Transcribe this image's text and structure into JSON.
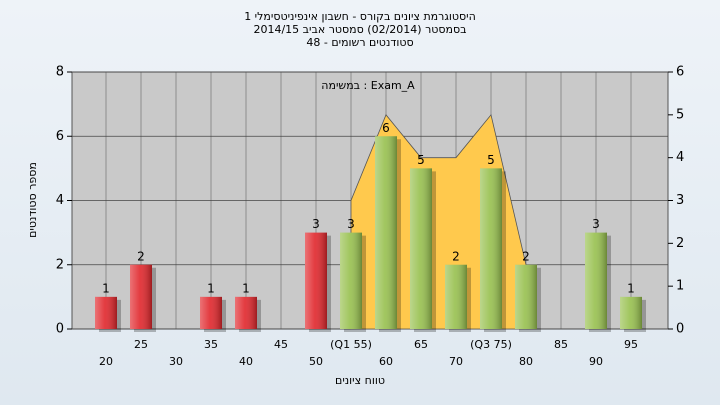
{
  "chart_data": {
    "type": "bar",
    "title": [
      "היסטוגרמת ציונים בקורס - חשבון אינפיניטסימלי 1",
      "בסמסטר (02/2014) סמסטר אביב 2014/15",
      "סטודנטים רשומים - 48"
    ],
    "annotation": "במשימה : Exam_A",
    "xlabel": "טווח ציונים",
    "ylabel": "מספר סטודנטים",
    "categories": [
      "20",
      "25",
      "30",
      "35",
      "40",
      "45",
      "50",
      "(Q1 55)",
      "60",
      "65",
      "70",
      "(Q3 75)",
      "80",
      "85",
      "90",
      "95"
    ],
    "series": [
      {
        "values": [
          1,
          2,
          0,
          1,
          1,
          0,
          3,
          3,
          6,
          5,
          2,
          5,
          2,
          0,
          3,
          1
        ],
        "colors": [
          "#e0262b",
          "#e0262b",
          "#e0262b",
          "#e0262b",
          "#e0262b",
          "#e0262b",
          "#e0262b",
          "#97c04e",
          "#97c04e",
          "#97c04e",
          "#97c04e",
          "#97c04e",
          "#97c04e",
          "#97c04e",
          "#97c04e",
          "#97c04e"
        ]
      },
      {
        "type": "area",
        "axis": "y2",
        "color": "#ffc94d",
        "values": [
          null,
          null,
          null,
          null,
          null,
          null,
          null,
          3,
          5,
          4,
          4,
          5,
          1.5,
          null,
          null,
          null
        ]
      }
    ],
    "ylim": [
      0,
      8
    ],
    "yticks": [
      0,
      2,
      4,
      6,
      8
    ],
    "y2lim": [
      0,
      6
    ],
    "y2ticks": [
      0,
      1,
      2,
      3,
      4,
      5,
      6
    ],
    "grid": true
  }
}
